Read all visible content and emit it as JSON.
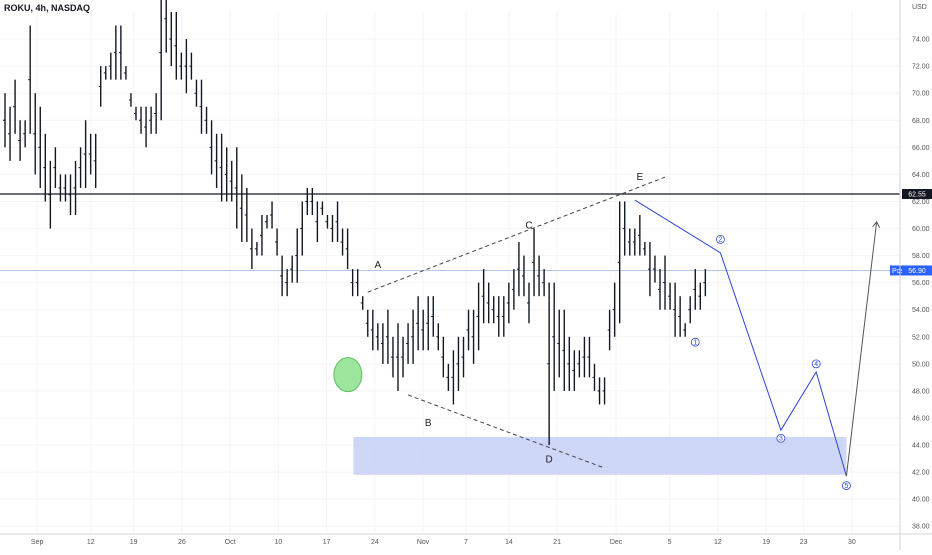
{
  "header": {
    "title": "ROKU, 4h, NASDAQ"
  },
  "chart_data": {
    "type": "ohlc-bar",
    "title": "ROKU, 4h, NASDAQ",
    "y_unit": "USD",
    "y_ticks": [
      38,
      40,
      42,
      44,
      46,
      48,
      50,
      52,
      54,
      56,
      58,
      60,
      62,
      64,
      66,
      68,
      70,
      72,
      74
    ],
    "ylim": [
      37.5,
      76
    ],
    "x_ticks": [
      "Sep",
      "12",
      "19",
      "26",
      "Oct",
      "10",
      "17",
      "24",
      "Nov",
      "7",
      "14",
      "21",
      "Dec",
      "5",
      "12",
      "19",
      "23",
      "30"
    ],
    "x_tick_bars": [
      6,
      16,
      24,
      33,
      42,
      51,
      60,
      69,
      78,
      86,
      94,
      103,
      114,
      124,
      133,
      142,
      149,
      158
    ],
    "xlim": [
      0,
      160
    ],
    "price_levels": [
      {
        "label": "62.55",
        "value": 62.55,
        "color": "#131722"
      },
      {
        "label": "Post",
        "value": 56.9,
        "price": "56.90",
        "color": "#2962ff"
      }
    ],
    "support_zone": {
      "from_bar": 65,
      "to_bar": 157,
      "low": 41.8,
      "high": 44.6,
      "color": "#c7d0f7"
    },
    "bars": [
      [
        0,
        70,
        66
      ],
      [
        1,
        69,
        65
      ],
      [
        2,
        71,
        67
      ],
      [
        3,
        68,
        65
      ],
      [
        4,
        68,
        66
      ],
      [
        5,
        75,
        67
      ],
      [
        6,
        70,
        64
      ],
      [
        7,
        69,
        63
      ],
      [
        8,
        67,
        62
      ],
      [
        9,
        65,
        60
      ],
      [
        10,
        66,
        63
      ],
      [
        11,
        64,
        62
      ],
      [
        12,
        64,
        62
      ],
      [
        13,
        64,
        61
      ],
      [
        14,
        65,
        61
      ],
      [
        15,
        66,
        63
      ],
      [
        16,
        68,
        63
      ],
      [
        17,
        67,
        64
      ],
      [
        18,
        67,
        63
      ],
      [
        19,
        72,
        69
      ],
      [
        20,
        72,
        71
      ],
      [
        21,
        73,
        71
      ],
      [
        22,
        75,
        71
      ],
      [
        23,
        75,
        71
      ],
      [
        24,
        72,
        71
      ],
      [
        25,
        70,
        69
      ],
      [
        26,
        69,
        68
      ],
      [
        27,
        69,
        67
      ],
      [
        28,
        69,
        66
      ],
      [
        29,
        69,
        67
      ],
      [
        30,
        70,
        67
      ],
      [
        31,
        78,
        68
      ],
      [
        32,
        78,
        73
      ],
      [
        33,
        76,
        72
      ],
      [
        34,
        76,
        71
      ],
      [
        35,
        73,
        71
      ],
      [
        36,
        74,
        70
      ],
      [
        37,
        73,
        71
      ],
      [
        38,
        71,
        69
      ],
      [
        39,
        71,
        67
      ],
      [
        40,
        69,
        67
      ],
      [
        41,
        68,
        64
      ],
      [
        42,
        67,
        63
      ],
      [
        43,
        67,
        62
      ],
      [
        44,
        66,
        62
      ],
      [
        45,
        65,
        62
      ],
      [
        46,
        66,
        60
      ],
      [
        47,
        64,
        59
      ],
      [
        48,
        63,
        59
      ],
      [
        49,
        60,
        57
      ],
      [
        50,
        59,
        58
      ],
      [
        51,
        61,
        58
      ],
      [
        52,
        61,
        60
      ],
      [
        53,
        62,
        60
      ],
      [
        54,
        60,
        58
      ],
      [
        55,
        58,
        55
      ],
      [
        56,
        57,
        55
      ],
      [
        57,
        58,
        56
      ],
      [
        58,
        60,
        56
      ],
      [
        59,
        62,
        58
      ],
      [
        60,
        63,
        61
      ],
      [
        61,
        63,
        61
      ],
      [
        62,
        62,
        59
      ],
      [
        63,
        62,
        61
      ],
      [
        64,
        61,
        60
      ],
      [
        65,
        61,
        59
      ],
      [
        66,
        62,
        59
      ],
      [
        67,
        60,
        58
      ],
      [
        68,
        60,
        57
      ],
      [
        69,
        57,
        55
      ],
      [
        70,
        57,
        55
      ],
      [
        71,
        55,
        54
      ],
      [
        72,
        54,
        52
      ],
      [
        73,
        54,
        51
      ],
      [
        74,
        53,
        51
      ],
      [
        75,
        53,
        50
      ],
      [
        76,
        54,
        50
      ],
      [
        77,
        52,
        49
      ],
      [
        78,
        53,
        48
      ],
      [
        79,
        52,
        49
      ],
      [
        80,
        53,
        50
      ],
      [
        81,
        54,
        50
      ],
      [
        82,
        55,
        51
      ],
      [
        83,
        54,
        51
      ],
      [
        84,
        55,
        51
      ],
      [
        85,
        55,
        52
      ],
      [
        86,
        53,
        51
      ],
      [
        87,
        52,
        49
      ],
      [
        88,
        50,
        48
      ],
      [
        89,
        51,
        47
      ],
      [
        90,
        52,
        48
      ],
      [
        91,
        52,
        49
      ],
      [
        92,
        54,
        51
      ],
      [
        93,
        54,
        50
      ],
      [
        94,
        56,
        51
      ],
      [
        95,
        57,
        53
      ],
      [
        96,
        56,
        53
      ],
      [
        97,
        55,
        53
      ],
      [
        98,
        55,
        52
      ],
      [
        99,
        55,
        52
      ],
      [
        100,
        56,
        53
      ],
      [
        101,
        57,
        54
      ],
      [
        102,
        59,
        55
      ],
      [
        103,
        58,
        55
      ],
      [
        104,
        56,
        53
      ],
      [
        105,
        60,
        55
      ],
      [
        106,
        58,
        55
      ],
      [
        107,
        57,
        55
      ],
      [
        108,
        56,
        44
      ],
      [
        109,
        56,
        48
      ],
      [
        110,
        54,
        49
      ],
      [
        111,
        54,
        48
      ],
      [
        112,
        52,
        48
      ],
      [
        113,
        51,
        48
      ],
      [
        114,
        51,
        49
      ],
      [
        115,
        52,
        49
      ],
      [
        116,
        52,
        49
      ],
      [
        117,
        50,
        48
      ],
      [
        118,
        49,
        47
      ],
      [
        119,
        49,
        47
      ],
      [
        120,
        54,
        51
      ],
      [
        121,
        56,
        52
      ],
      [
        122,
        62,
        53
      ],
      [
        123,
        62,
        58
      ],
      [
        124,
        60,
        58
      ],
      [
        125,
        60,
        58
      ],
      [
        126,
        61,
        58
      ],
      [
        127,
        59,
        58
      ],
      [
        128,
        59,
        55
      ],
      [
        129,
        58,
        56
      ],
      [
        130,
        57,
        54
      ],
      [
        131,
        58,
        54
      ],
      [
        132,
        56,
        54
      ],
      [
        133,
        56,
        52
      ],
      [
        134,
        55,
        52
      ],
      [
        135,
        53,
        52
      ],
      [
        136,
        55,
        53
      ],
      [
        137,
        57,
        54
      ],
      [
        138,
        56,
        54
      ],
      [
        139,
        57,
        55
      ]
    ],
    "trendlines": [
      {
        "points": [
          [
            72,
            55.3
          ],
          [
            131,
            63.8
          ]
        ],
        "style": "dashed",
        "color": "#444"
      },
      {
        "points": [
          [
            80,
            47.7
          ],
          [
            119,
            42.3
          ]
        ],
        "style": "dashed",
        "color": "#444"
      }
    ],
    "wave_labels": [
      {
        "label": "A",
        "bar": 74,
        "price": 57.1
      },
      {
        "label": "B",
        "bar": 84,
        "price": 45.4
      },
      {
        "label": "C",
        "bar": 104,
        "price": 60.0
      },
      {
        "label": "D",
        "bar": 108,
        "price": 42.7
      },
      {
        "label": "E",
        "bar": 126,
        "price": 63.6
      }
    ],
    "projection": {
      "color": "#2a43d6",
      "points": [
        [
          125,
          62.1
        ],
        [
          142,
          58.2
        ],
        [
          154,
          45.1
        ],
        [
          161,
          49.4
        ],
        [
          167,
          41.7
        ]
      ],
      "circle_labels": [
        {
          "label": "1",
          "bar": 137,
          "price": 51.6
        },
        {
          "label": "2",
          "bar": 142,
          "price": 59.2
        },
        {
          "label": "3",
          "bar": 154,
          "price": 44.5
        },
        {
          "label": "4",
          "bar": 161,
          "price": 50.0
        },
        {
          "label": "5",
          "bar": 167,
          "price": 41.0
        }
      ]
    },
    "final_arrow": {
      "from": [
        167,
        41.7
      ],
      "to": [
        173,
        60.5
      ],
      "color": "#555"
    },
    "highlight_ellipse": {
      "bar": 75,
      "price": 49.2,
      "color": "#9de59d"
    }
  }
}
